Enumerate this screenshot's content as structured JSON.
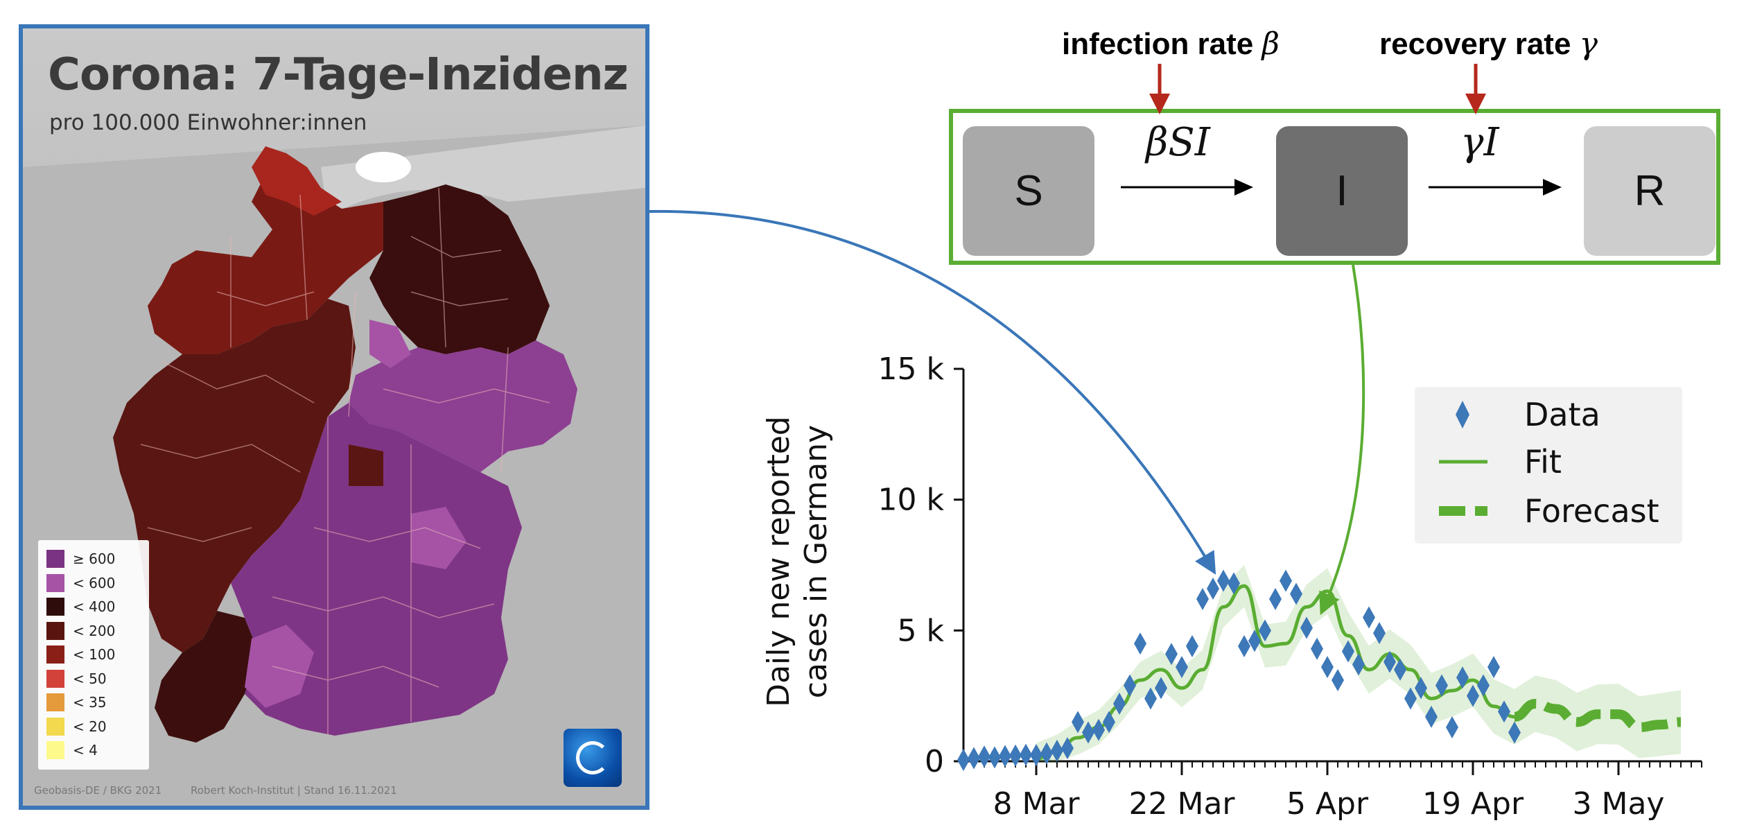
{
  "map": {
    "title": "Corona: 7-Tage-Inzidenz",
    "subtitle": "pro 100.000 Einwohner:innen",
    "legend": [
      {
        "label": "≥ 600",
        "color": "#7a3382"
      },
      {
        "label": "< 600",
        "color": "#a653a6"
      },
      {
        "label": "< 400",
        "color": "#2e0c0c"
      },
      {
        "label": "< 200",
        "color": "#5a1410"
      },
      {
        "label": "< 100",
        "color": "#8a1f18"
      },
      {
        "label": "< 50",
        "color": "#d2423a"
      },
      {
        "label": "< 35",
        "color": "#e59a3b"
      },
      {
        "label": "< 20",
        "color": "#f2d94e"
      },
      {
        "label": "< 4",
        "color": "#fdf98a"
      }
    ],
    "footer_left": "Geobasis-DE / BKG 2021",
    "footer_right": "Robert Koch-Institut | Stand 16.11.2021"
  },
  "sir": {
    "infection_label": "infection rate",
    "infection_symbol": "β",
    "recovery_label": "recovery rate",
    "recovery_symbol": "γ",
    "compartments": {
      "S": "S",
      "I": "I",
      "R": "R"
    },
    "flow_infection": "βSI",
    "flow_recovery": "γI",
    "colors": {
      "frame": "#5aad32",
      "rate_arrow": "#b5281b"
    }
  },
  "chart_data": {
    "type": "line",
    "ylabel": "Daily new reported cases in Germany",
    "ylabel_lines": [
      "Daily new reported",
      "cases in Germany"
    ],
    "y_ticks": [
      {
        "value": 0,
        "label": "0"
      },
      {
        "value": 5000,
        "label": "5 k"
      },
      {
        "value": 10000,
        "label": "10 k"
      },
      {
        "value": 15000,
        "label": "15 k"
      }
    ],
    "ylim": [
      0,
      15000
    ],
    "x_start": "2020-03-01",
    "xlim_days": [
      0,
      71
    ],
    "x_ticks": [
      {
        "day": 7,
        "label": "8 Mar"
      },
      {
        "day": 21,
        "label": "22 Mar"
      },
      {
        "day": 35,
        "label": "5 Apr"
      },
      {
        "day": 49,
        "label": "19 Apr"
      },
      {
        "day": 63,
        "label": "3 May"
      }
    ],
    "legend_position": "top-right",
    "series": [
      {
        "name": "Data",
        "style": "diamond",
        "color": "#3d78b8",
        "x": [
          0,
          1,
          2,
          3,
          4,
          5,
          6,
          7,
          8,
          9,
          10,
          11,
          12,
          13,
          14,
          15,
          16,
          17,
          18,
          19,
          20,
          21,
          22,
          23,
          24,
          25,
          26,
          27,
          28,
          29,
          30,
          31,
          32,
          33,
          34,
          35,
          36,
          37,
          38,
          39,
          40,
          41,
          42,
          43,
          44,
          45,
          46,
          47,
          48,
          49,
          50,
          51,
          52,
          53
        ],
        "y": [
          50,
          120,
          180,
          150,
          200,
          220,
          250,
          240,
          300,
          400,
          500,
          1500,
          1100,
          1200,
          1500,
          2200,
          2900,
          4500,
          2400,
          2800,
          4100,
          3600,
          4400,
          6200,
          6600,
          6900,
          6800,
          4400,
          4600,
          5000,
          6200,
          6900,
          6400,
          5100,
          4300,
          3600,
          3100,
          4200,
          3700,
          5500,
          4900,
          3800,
          3500,
          2400,
          2800,
          1700,
          2900,
          1300,
          3200,
          2500,
          2900,
          3600,
          1900,
          1100
        ]
      },
      {
        "name": "Fit",
        "style": "solid",
        "color": "#5aad32",
        "x": [
          7,
          9,
          11,
          13,
          15,
          17,
          19,
          21,
          23,
          25,
          27,
          29,
          31,
          33,
          35,
          37,
          39,
          41,
          43,
          45,
          47,
          49,
          51,
          53
        ],
        "y": [
          100,
          400,
          900,
          1300,
          2100,
          3100,
          3500,
          2800,
          3500,
          5900,
          6700,
          4400,
          4500,
          5900,
          6500,
          4800,
          3500,
          4100,
          3500,
          2400,
          2700,
          3100,
          2100,
          1700
        ]
      },
      {
        "name": "Forecast",
        "style": "dashed",
        "color": "#5aad32",
        "x": [
          53,
          55,
          57,
          59,
          61,
          63,
          65,
          67,
          69
        ],
        "y": [
          1700,
          2200,
          2000,
          1500,
          1800,
          1800,
          1300,
          1400,
          1500
        ]
      }
    ]
  }
}
